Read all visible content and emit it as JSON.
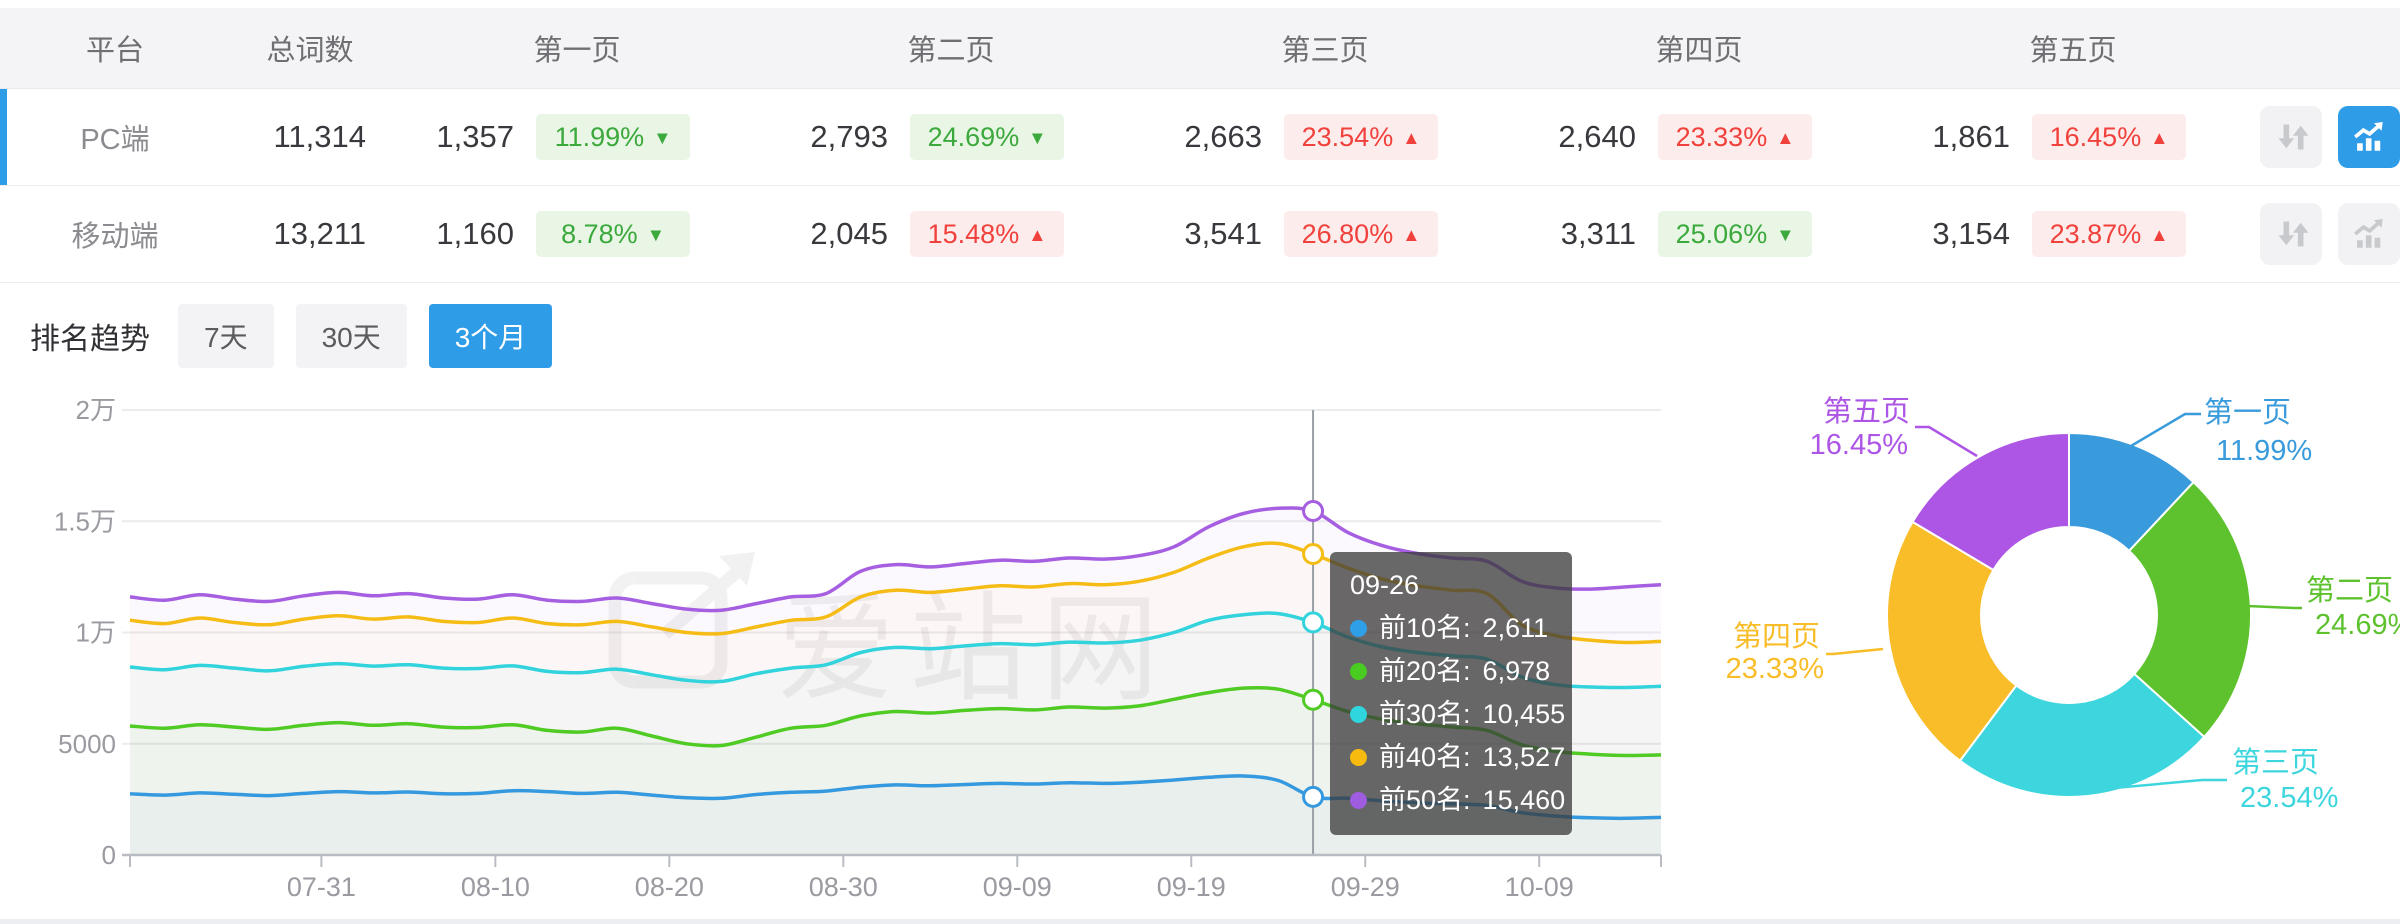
{
  "table": {
    "columns": [
      "平台",
      "总词数",
      "第一页",
      "第二页",
      "第三页",
      "第四页",
      "第五页"
    ],
    "rows": [
      {
        "platform": "PC端",
        "total": "11,314",
        "active": true,
        "chart_active": true,
        "pages": [
          {
            "value": "1,357",
            "pct": "11.99%",
            "tone": "green",
            "trend": "down",
            "arrow": "▼"
          },
          {
            "value": "2,793",
            "pct": "24.69%",
            "tone": "green",
            "trend": "down",
            "arrow": "▼"
          },
          {
            "value": "2,663",
            "pct": "23.54%",
            "tone": "red",
            "trend": "up",
            "arrow": "▲"
          },
          {
            "value": "2,640",
            "pct": "23.33%",
            "tone": "red",
            "trend": "up",
            "arrow": "▲"
          },
          {
            "value": "1,861",
            "pct": "16.45%",
            "tone": "red",
            "trend": "up",
            "arrow": "▲"
          }
        ]
      },
      {
        "platform": "移动端",
        "total": "13,211",
        "active": false,
        "chart_active": false,
        "pages": [
          {
            "value": "1,160",
            "pct": "8.78%",
            "tone": "green",
            "trend": "down",
            "arrow": "▼"
          },
          {
            "value": "2,045",
            "pct": "15.48%",
            "tone": "red",
            "trend": "up",
            "arrow": "▲"
          },
          {
            "value": "3,541",
            "pct": "26.80%",
            "tone": "red",
            "trend": "up",
            "arrow": "▲"
          },
          {
            "value": "3,311",
            "pct": "25.06%",
            "tone": "green",
            "trend": "down",
            "arrow": "▼"
          },
          {
            "value": "3,154",
            "pct": "23.87%",
            "tone": "red",
            "trend": "up",
            "arrow": "▲"
          }
        ]
      }
    ]
  },
  "trend": {
    "title": "排名趋势",
    "tabs": [
      {
        "label": "7天",
        "active": false
      },
      {
        "label": "30天",
        "active": false
      },
      {
        "label": "3个月",
        "active": true
      }
    ],
    "tooltip": {
      "date": "09-26",
      "items": [
        {
          "label": "前10名:",
          "value": "2,611",
          "color": "#2f9fe8"
        },
        {
          "label": "前20名:",
          "value": "6,978",
          "color": "#49cb22"
        },
        {
          "label": "前30名:",
          "value": "10,455",
          "color": "#2fd6de"
        },
        {
          "label": "前40名:",
          "value": "13,527",
          "color": "#f7bb10"
        },
        {
          "label": "前50名:",
          "value": "15,460",
          "color": "#9e5ce0"
        }
      ]
    }
  },
  "watermark": "爱站网",
  "chart_data": [
    {
      "id": "ranking-trend-line",
      "type": "line",
      "title": "排名趋势",
      "period": "3个月",
      "x_start": "07-20",
      "x_step_days": 2,
      "x_total_days": 88,
      "x_ticks": [
        "07-31",
        "08-10",
        "08-20",
        "08-30",
        "09-09",
        "09-19",
        "09-29",
        "10-09"
      ],
      "x_tick_day_offsets": [
        11,
        21,
        31,
        41,
        51,
        61,
        71,
        81
      ],
      "y_ticks": [
        "2万",
        "1.5万",
        "1万",
        "5000",
        "0"
      ],
      "ylim": [
        0,
        20000
      ],
      "grid": true,
      "legend_position": "none",
      "highlight": {
        "index": 34,
        "date": "09-26"
      },
      "series": [
        {
          "name": "前10名",
          "color": "#3599df",
          "values": [
            2750,
            2690,
            2790,
            2730,
            2670,
            2770,
            2850,
            2790,
            2830,
            2750,
            2770,
            2890,
            2850,
            2770,
            2820,
            2690,
            2570,
            2550,
            2720,
            2820,
            2870,
            3050,
            3150,
            3110,
            3170,
            3220,
            3190,
            3250,
            3220,
            3270,
            3370,
            3490,
            3550,
            3350,
            2611,
            2550,
            2430,
            2350,
            2300,
            2230,
            1900,
            1750,
            1670,
            1650,
            1690
          ]
        },
        {
          "name": "前20名",
          "color": "#4fcb24",
          "values": [
            5800,
            5700,
            5850,
            5750,
            5650,
            5830,
            5950,
            5830,
            5900,
            5750,
            5730,
            5850,
            5600,
            5530,
            5700,
            5350,
            5000,
            4920,
            5300,
            5700,
            5830,
            6250,
            6450,
            6380,
            6500,
            6580,
            6520,
            6650,
            6600,
            6700,
            7000,
            7300,
            7500,
            7450,
            6978,
            6450,
            6100,
            5900,
            5750,
            5600,
            4950,
            4650,
            4530,
            4470,
            4500
          ]
        },
        {
          "name": "前30名",
          "color": "#32d3dc",
          "values": [
            8450,
            8330,
            8520,
            8400,
            8280,
            8480,
            8600,
            8490,
            8550,
            8400,
            8380,
            8500,
            8250,
            8200,
            8350,
            8100,
            7850,
            7800,
            8150,
            8400,
            8550,
            9100,
            9330,
            9270,
            9400,
            9500,
            9450,
            9570,
            9530,
            9650,
            10000,
            10550,
            10800,
            10850,
            10455,
            9800,
            9350,
            9100,
            8950,
            8800,
            8000,
            7650,
            7550,
            7530,
            7580
          ]
        },
        {
          "name": "前40名",
          "color": "#f6bc16",
          "values": [
            10550,
            10400,
            10650,
            10450,
            10350,
            10600,
            10750,
            10600,
            10700,
            10500,
            10450,
            10650,
            10400,
            10350,
            10500,
            10250,
            10000,
            9950,
            10250,
            10550,
            10700,
            11600,
            11900,
            11800,
            11950,
            12100,
            12050,
            12200,
            12150,
            12300,
            12700,
            13350,
            13850,
            14000,
            13527,
            12900,
            12400,
            12100,
            11900,
            11750,
            10350,
            9850,
            9650,
            9550,
            9600
          ]
        },
        {
          "name": "前50名",
          "color": "#a55fe0",
          "values": [
            11600,
            11450,
            11700,
            11500,
            11400,
            11650,
            11800,
            11650,
            11750,
            11550,
            11500,
            11700,
            11450,
            11400,
            11550,
            11300,
            11050,
            11000,
            11300,
            11600,
            11750,
            12750,
            13050,
            12950,
            13100,
            13250,
            13200,
            13350,
            13300,
            13450,
            13850,
            14750,
            15350,
            15580,
            15460,
            14500,
            13900,
            13550,
            13350,
            13200,
            12300,
            12000,
            11950,
            12050,
            12150
          ]
        }
      ]
    },
    {
      "id": "page-distribution-donut",
      "type": "pie",
      "donut": true,
      "start_angle": "top",
      "direction": "clockwise",
      "labels": [
        "第一页",
        "第二页",
        "第三页",
        "第四页",
        "第五页"
      ],
      "values": [
        11.99,
        24.69,
        23.54,
        23.33,
        16.45
      ],
      "pct_labels": [
        "11.99%",
        "24.69%",
        "23.54%",
        "23.33%",
        "16.45%"
      ],
      "colors": [
        "#399bdb",
        "#5ec22f",
        "#3ed6de",
        "#f8bd28",
        "#ad55e5"
      ]
    }
  ]
}
